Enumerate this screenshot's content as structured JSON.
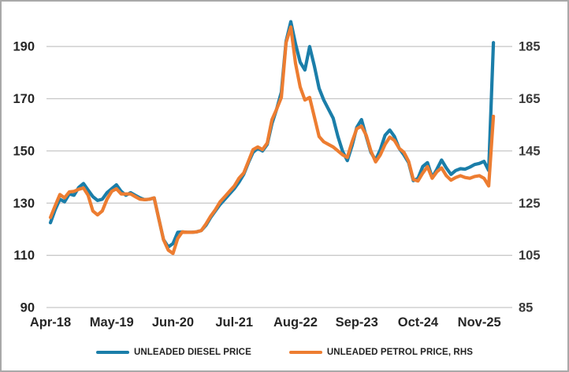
{
  "window": {
    "background": "#FFFFFF",
    "border_color": "#A9A9A9"
  },
  "legend": {
    "diesel": "UNLEADED DIESEL PRICE",
    "petrol": "UNLEADED PETROL PRICE, RHS"
  },
  "style": {
    "gridline_color": "#C6C6C6",
    "left_tick_label_color": "#262626",
    "right_tick_label_color": "#3A3A3A",
    "x_tick_label_color": "#262626",
    "diesel_color": "#1B7EA9",
    "petrol_color": "#ED7D31"
  },
  "chart_data": {
    "type": "line",
    "title": "",
    "x_frequency": "monthly",
    "grid": "horizontal",
    "legend_position": "bottom",
    "months": [
      "2018-04",
      "2018-05",
      "2018-06",
      "2018-07",
      "2018-08",
      "2018-09",
      "2018-10",
      "2018-11",
      "2018-12",
      "2019-01",
      "2019-02",
      "2019-03",
      "2019-04",
      "2019-05",
      "2019-06",
      "2019-07",
      "2019-08",
      "2019-09",
      "2019-10",
      "2019-11",
      "2019-12",
      "2020-01",
      "2020-02",
      "2020-03",
      "2020-04",
      "2020-05",
      "2020-06",
      "2020-07",
      "2020-08",
      "2020-09",
      "2020-10",
      "2020-11",
      "2020-12",
      "2021-01",
      "2021-02",
      "2021-03",
      "2021-04",
      "2021-05",
      "2021-06",
      "2021-07",
      "2021-08",
      "2021-09",
      "2021-10",
      "2021-11",
      "2021-12",
      "2022-01",
      "2022-02",
      "2022-03",
      "2022-04",
      "2022-05",
      "2022-06",
      "2022-07",
      "2022-08",
      "2022-09",
      "2022-10",
      "2022-11",
      "2022-12",
      "2023-01",
      "2023-02",
      "2023-03",
      "2023-04",
      "2023-05",
      "2023-06",
      "2023-07",
      "2023-08",
      "2023-09",
      "2023-10",
      "2023-11",
      "2023-12",
      "2024-01",
      "2024-02",
      "2024-03",
      "2024-04",
      "2024-05",
      "2024-06",
      "2024-07",
      "2024-08",
      "2024-09",
      "2024-10",
      "2024-11",
      "2024-12",
      "2025-01",
      "2025-02",
      "2025-03",
      "2025-04",
      "2025-05",
      "2025-06",
      "2025-07",
      "2025-08",
      "2025-09",
      "2025-10",
      "2025-11",
      "2025-12",
      "2026-01",
      "2026-02"
    ],
    "series": [
      {
        "name": "UNLEADED DIESEL PRICE",
        "axis": "left",
        "color": "#1B7EA9",
        "values": [
          122.5,
          127.5,
          131.5,
          130.5,
          133.5,
          133.0,
          136.0,
          137.5,
          135.0,
          132.5,
          131.0,
          131.5,
          134.0,
          135.5,
          137.0,
          134.5,
          133.0,
          134.0,
          133.0,
          132.0,
          131.3,
          131.5,
          132.0,
          124.0,
          116.0,
          113.2,
          114.5,
          118.8,
          119.0,
          118.8,
          118.8,
          119.0,
          119.5,
          121.5,
          124.5,
          127.0,
          129.5,
          131.5,
          133.5,
          135.5,
          138.0,
          141.0,
          145.5,
          149.5,
          151.0,
          150.0,
          152.5,
          160.5,
          166.0,
          172.5,
          192.0,
          199.5,
          191.0,
          184.0,
          181.0,
          190.0,
          182.5,
          174.0,
          169.5,
          166.0,
          162.5,
          155.5,
          149.8,
          146.3,
          152.0,
          159.0,
          162.0,
          155.5,
          149.5,
          146.5,
          150.5,
          156.0,
          158.0,
          155.5,
          151.0,
          148.5,
          145.5,
          138.6,
          139.5,
          144.0,
          145.5,
          139.8,
          143.0,
          146.5,
          143.5,
          141.0,
          142.5,
          143.2,
          143.0,
          143.8,
          144.8,
          145.2,
          146.0,
          142.5,
          191.5
        ]
      },
      {
        "name": "UNLEADED PETROL PRICE, RHS",
        "axis": "right",
        "color": "#ED7D31",
        "values": [
          119.5,
          124.0,
          128.3,
          127.0,
          129.3,
          129.5,
          130.3,
          130.8,
          128.0,
          122.0,
          120.5,
          122.0,
          126.5,
          129.5,
          130.5,
          128.5,
          128.5,
          128.5,
          127.5,
          126.5,
          126.3,
          126.5,
          127.0,
          119.0,
          111.0,
          107.0,
          105.7,
          111.5,
          114.0,
          113.8,
          113.8,
          114.0,
          114.5,
          117.0,
          120.0,
          122.5,
          125.5,
          127.5,
          129.5,
          131.5,
          134.5,
          136.5,
          141.0,
          145.5,
          146.5,
          145.5,
          148.0,
          157.0,
          161.0,
          165.5,
          186.5,
          192.5,
          178.5,
          169.5,
          164.5,
          165.5,
          158.0,
          150.5,
          148.5,
          147.5,
          146.5,
          145.0,
          143.5,
          142.5,
          148.5,
          153.5,
          154.5,
          151.0,
          145.0,
          140.8,
          143.5,
          147.5,
          150.3,
          149.0,
          146.0,
          144.5,
          141.0,
          134.0,
          133.5,
          136.5,
          139.0,
          134.5,
          137.0,
          138.5,
          135.5,
          133.8,
          134.8,
          135.5,
          134.8,
          134.5,
          135.2,
          135.5,
          134.5,
          131.6,
          158.3
        ]
      }
    ],
    "left_axis": {
      "ticks": [
        190,
        170,
        150,
        130,
        110,
        90
      ],
      "range": [
        90,
        201.8
      ]
    },
    "right_axis": {
      "ticks": [
        185,
        165,
        145,
        125,
        105,
        85
      ],
      "range": [
        85,
        196.8
      ],
      "offset_from_left": -5
    },
    "x_ticks": [
      {
        "index": 0,
        "label": "Apr-18"
      },
      {
        "index": 13,
        "label": "May-19"
      },
      {
        "index": 26,
        "label": "Jun-20"
      },
      {
        "index": 39,
        "label": "Jul-21"
      },
      {
        "index": 52,
        "label": "Aug-22"
      },
      {
        "index": 65,
        "label": "Sep-23"
      },
      {
        "index": 78,
        "label": "Oct-24"
      },
      {
        "index": 91,
        "label": "Nov-25"
      }
    ]
  }
}
